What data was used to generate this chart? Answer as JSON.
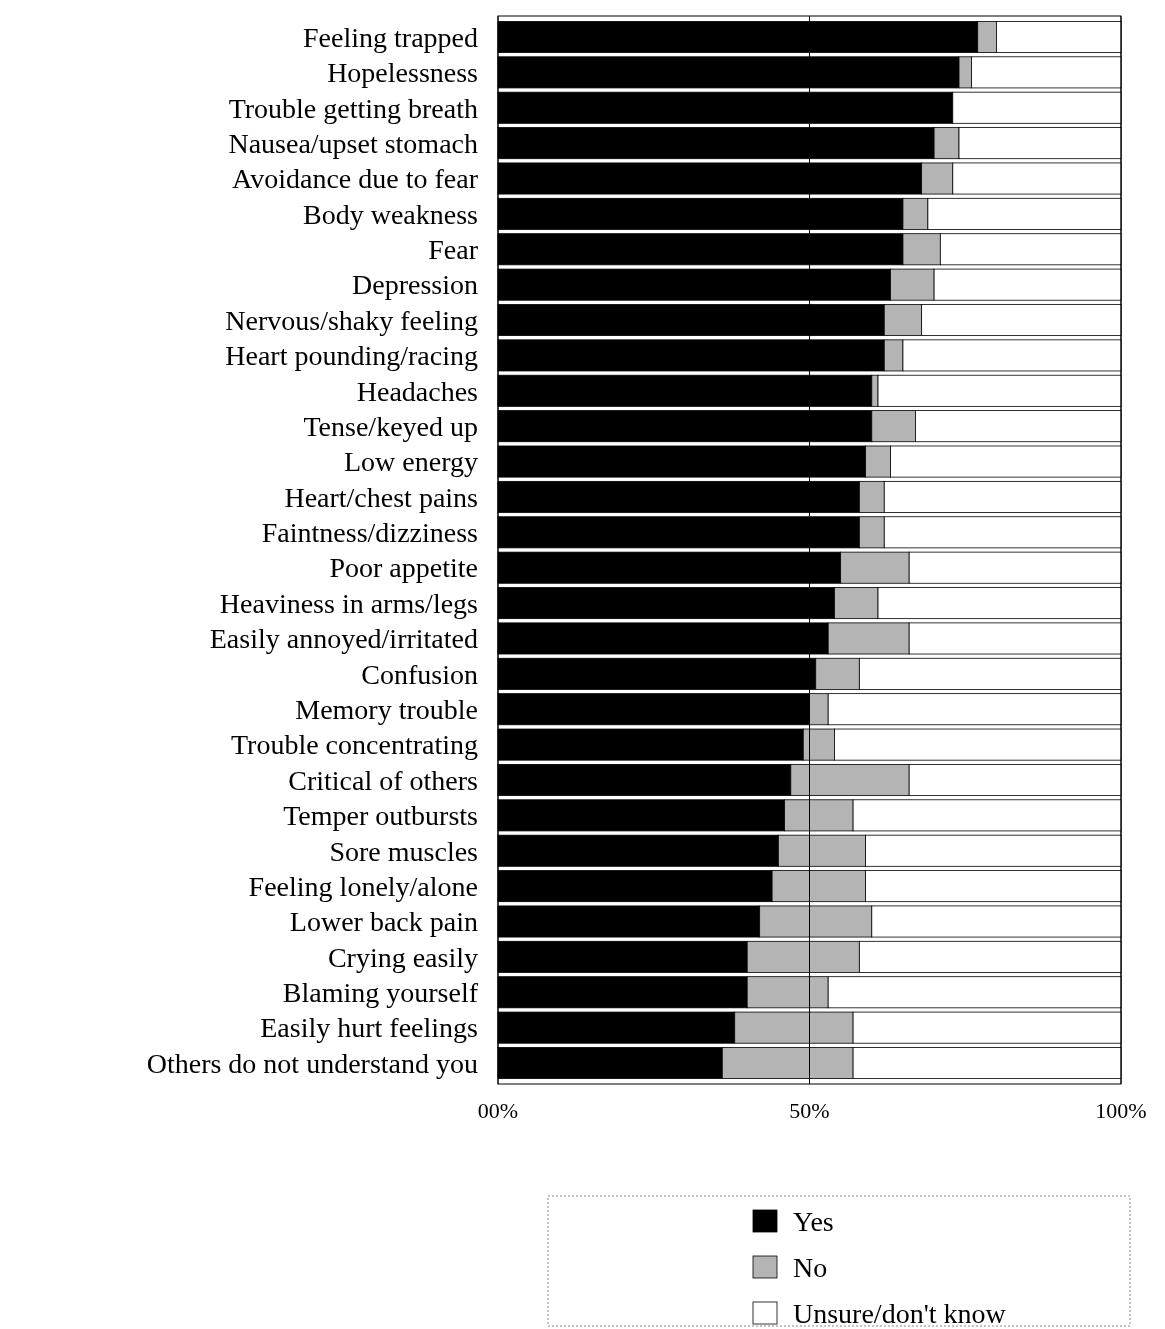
{
  "chart_data": {
    "type": "bar",
    "orientation": "horizontal",
    "stacked": true,
    "categories": [
      "Feeling trapped",
      "Hopelessness",
      "Trouble getting breath",
      "Nausea/upset stomach",
      "Avoidance due to fear",
      "Body weakness",
      "Fear",
      "Depression",
      "Nervous/shaky feeling",
      "Heart pounding/racing",
      "Headaches",
      "Tense/keyed up",
      "Low energy",
      "Heart/chest pains",
      "Faintness/dizziness",
      "Poor appetite",
      "Heaviness in arms/legs",
      "Easily annoyed/irritated",
      "Confusion",
      "Memory trouble",
      "Trouble concentrating",
      "Critical of others",
      "Temper outbursts",
      "Sore muscles",
      "Feeling lonely/alone",
      "Lower back pain",
      "Crying easily",
      "Blaming yourself",
      "Easily hurt feelings",
      "Others do not understand you"
    ],
    "series": [
      {
        "name": "Yes",
        "color": "#000000",
        "values": [
          77,
          74,
          73,
          70,
          68,
          65,
          65,
          63,
          62,
          62,
          60,
          60,
          59,
          58,
          58,
          55,
          54,
          53,
          51,
          50,
          49,
          47,
          46,
          45,
          44,
          42,
          40,
          40,
          38,
          36
        ]
      },
      {
        "name": "No",
        "color": "#b4b4b4",
        "values": [
          3,
          2,
          0,
          4,
          5,
          4,
          6,
          7,
          6,
          3,
          1,
          7,
          4,
          4,
          4,
          11,
          7,
          13,
          7,
          3,
          5,
          19,
          11,
          14,
          15,
          18,
          18,
          13,
          19,
          21
        ]
      },
      {
        "name": "Unsure/don't know",
        "color": "#ffffff",
        "values": [
          20,
          24,
          27,
          26,
          27,
          31,
          29,
          30,
          32,
          35,
          39,
          33,
          37,
          38,
          38,
          34,
          39,
          34,
          42,
          47,
          46,
          34,
          43,
          41,
          41,
          40,
          42,
          47,
          43,
          43
        ]
      }
    ],
    "xlim": [
      0,
      100
    ],
    "xticks": [
      {
        "value": 0,
        "label": "00%"
      },
      {
        "value": 50,
        "label": "50%"
      },
      {
        "value": 100,
        "label": "100%"
      }
    ],
    "grid": "x",
    "legend": "bottom right"
  }
}
